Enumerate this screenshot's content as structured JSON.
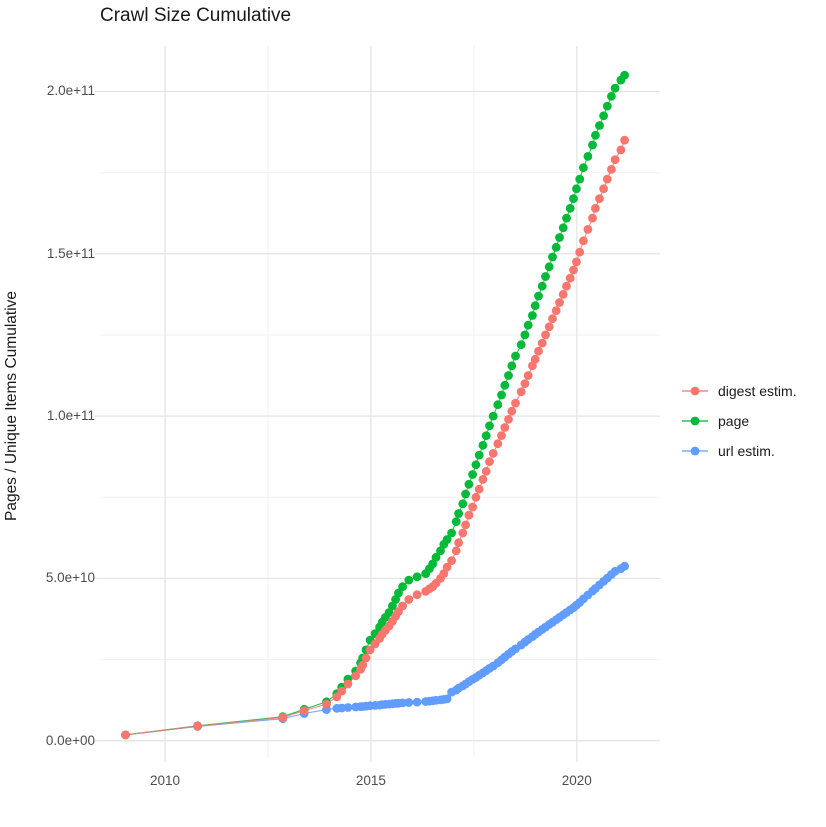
{
  "title": "Crawl Size Cumulative",
  "chart_data": {
    "type": "line",
    "title": "Crawl Size Cumulative",
    "xlabel": "",
    "ylabel": "Pages / Unique Items Cumulative",
    "legend_position": "right",
    "grid": true,
    "values_unit": "items, stored in billions (1e9); axis shows e-notation",
    "x_unit": "year (decimal)",
    "x_range": [
      2008.42,
      2022.02
    ],
    "y_range": [
      -5,
      214
    ],
    "x_ticks": [
      2010,
      2015,
      2020
    ],
    "x_tick_labels": [
      "2010",
      "2015",
      "2020"
    ],
    "x_minor_ticks": [
      2012.5,
      2017.5
    ],
    "y_ticks": [
      0,
      50,
      100,
      150,
      200
    ],
    "y_tick_labels": [
      "0.0e+00",
      "5.0e+10",
      "1.0e+11",
      "1.5e+11",
      "2.0e+11"
    ],
    "y_minor_ticks": [
      25,
      75,
      125,
      175
    ],
    "x": [
      2009.04,
      2010.79,
      2012.86,
      2013.38,
      2013.92,
      2014.17,
      2014.29,
      2014.44,
      2014.63,
      2014.75,
      2014.8,
      2014.88,
      2014.98,
      2015.1,
      2015.21,
      2015.27,
      2015.35,
      2015.44,
      2015.52,
      2015.6,
      2015.67,
      2015.77,
      2015.92,
      2016.12,
      2016.33,
      2016.42,
      2016.5,
      2016.58,
      2016.69,
      2016.77,
      2016.85,
      2016.96,
      2017.07,
      2017.13,
      2017.23,
      2017.3,
      2017.38,
      2017.47,
      2017.55,
      2017.63,
      2017.72,
      2017.8,
      2017.88,
      2017.97,
      2018.08,
      2018.17,
      2018.25,
      2018.34,
      2018.42,
      2018.51,
      2018.65,
      2018.74,
      2018.82,
      2018.92,
      2018.99,
      2019.07,
      2019.16,
      2019.24,
      2019.33,
      2019.41,
      2019.5,
      2019.58,
      2019.67,
      2019.75,
      2019.84,
      2019.92,
      2019.99,
      2020.07,
      2020.16,
      2020.27,
      2020.38,
      2020.45,
      2020.55,
      2020.65,
      2020.74,
      2020.84,
      2020.93,
      2021.07,
      2021.16
    ],
    "series": [
      {
        "name": "digest estim.",
        "color": "#F8766D",
        "values": [
          1.8,
          4.5,
          7.2,
          9.3,
          11.3,
          13.5,
          15.3,
          17.5,
          20.0,
          22.0,
          23.3,
          25.5,
          28.0,
          29.8,
          31.5,
          32.8,
          34.0,
          35.3,
          36.8,
          38.3,
          39.8,
          41.5,
          43.5,
          45.0,
          46.0,
          46.8,
          47.5,
          48.5,
          50.0,
          51.5,
          53.5,
          55.5,
          58.5,
          61.0,
          64.0,
          66.5,
          69.5,
          72.0,
          75.0,
          77.5,
          80.5,
          83.0,
          86.0,
          88.5,
          91.5,
          94.0,
          96.5,
          99.0,
          101.5,
          104.0,
          107.5,
          110.0,
          112.5,
          115.5,
          117.5,
          120.0,
          122.5,
          125.0,
          127.5,
          130.0,
          132.5,
          135.0,
          137.5,
          140.0,
          142.5,
          145.0,
          147.5,
          150.5,
          154.0,
          157.5,
          161.0,
          164.0,
          167.0,
          170.0,
          173.0,
          176.0,
          179.0,
          182.0,
          185.0
        ]
      },
      {
        "name": "page",
        "color": "#00BA38",
        "values": [
          1.8,
          4.6,
          7.4,
          9.7,
          12.0,
          14.5,
          16.5,
          19.0,
          21.5,
          24.0,
          25.5,
          28.0,
          31.0,
          33.0,
          35.0,
          36.5,
          38.0,
          39.5,
          41.5,
          43.5,
          45.5,
          47.5,
          49.5,
          50.5,
          51.5,
          53.0,
          54.5,
          56.5,
          58.5,
          60.5,
          62.0,
          64.0,
          67.5,
          70.0,
          73.0,
          76.0,
          79.0,
          82.0,
          85.0,
          88.0,
          91.0,
          94.0,
          97.0,
          100.0,
          103.5,
          106.5,
          109.5,
          112.5,
          115.5,
          118.5,
          122.0,
          125.0,
          128.0,
          131.0,
          134.0,
          137.0,
          140.0,
          143.0,
          146.0,
          149.0,
          152.0,
          155.0,
          158.0,
          161.0,
          164.0,
          167.0,
          170.0,
          173.0,
          176.5,
          180.0,
          183.5,
          186.5,
          189.5,
          192.5,
          195.5,
          198.5,
          201.0,
          203.5,
          205.0
        ]
      },
      {
        "name": "url estim.",
        "color": "#619CFF",
        "values": [
          1.8,
          4.4,
          6.8,
          8.4,
          9.6,
          10.0,
          10.1,
          10.25,
          10.4,
          10.5,
          10.55,
          10.65,
          10.8,
          10.9,
          11.0,
          11.1,
          11.2,
          11.3,
          11.4,
          11.5,
          11.55,
          11.65,
          11.8,
          11.9,
          12.1,
          12.2,
          12.3,
          12.45,
          12.6,
          12.75,
          12.9,
          15.0,
          15.6,
          16.2,
          16.9,
          17.5,
          18.2,
          18.9,
          19.5,
          20.2,
          20.9,
          21.6,
          22.3,
          23.0,
          24.0,
          24.9,
          25.8,
          26.7,
          27.5,
          28.3,
          29.5,
          30.4,
          31.2,
          32.1,
          32.8,
          33.5,
          34.3,
          35.0,
          35.8,
          36.5,
          37.3,
          38.0,
          38.8,
          39.5,
          40.3,
          41.0,
          41.8,
          42.6,
          43.7,
          44.9,
          46.1,
          46.9,
          48.0,
          49.1,
          50.1,
          51.2,
          52.2,
          53.0,
          53.8
        ]
      }
    ],
    "style": {
      "major_grid_color": "#e3e3e3",
      "minor_grid_color": "#f0f0f0",
      "background": "#ffffff",
      "tick_label_color": "#4d4d4d",
      "text_color": "#1a1a1a",
      "point_radius": 4.4,
      "draw_order": [
        "url estim.",
        "page",
        "digest estim."
      ]
    }
  }
}
